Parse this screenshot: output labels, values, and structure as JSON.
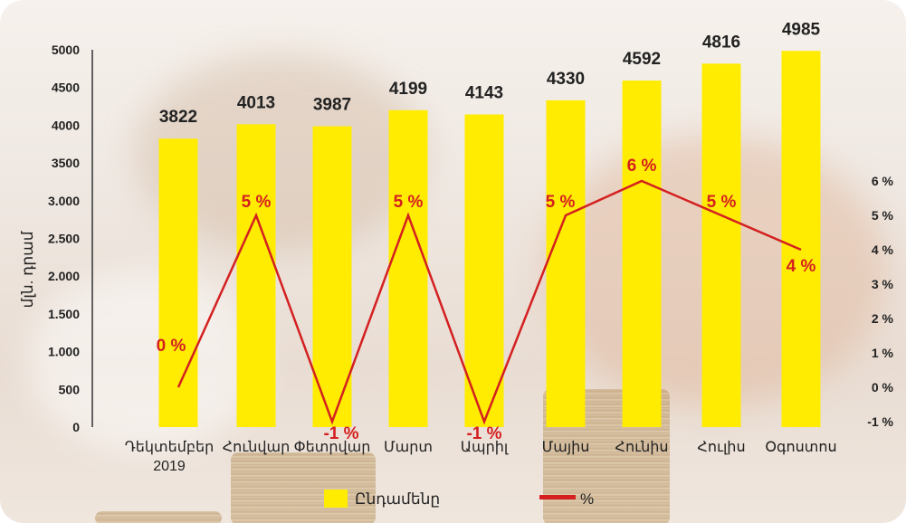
{
  "chart_data": {
    "type": "bar",
    "categories": [
      "Դեկտեմբեր 2019",
      "Հունվար",
      "Փետրվար",
      "Մարտ",
      "Ապրիլ",
      "Մայիս",
      "Հունիս",
      "Հուլիս",
      "Օգոստոս"
    ],
    "series": [
      {
        "name": "Ընդամենը",
        "type": "bar",
        "axis": "left",
        "color": "#ffec00",
        "values": [
          3822,
          4013,
          3987,
          4199,
          4143,
          4330,
          4592,
          4816,
          4985
        ],
        "labels": [
          "3822",
          "4013",
          "3987",
          "4199",
          "4143",
          "4330",
          "4592",
          "4816",
          "4985"
        ]
      },
      {
        "name": "%",
        "type": "line",
        "axis": "right",
        "color": "#d42020",
        "values": [
          0,
          5,
          -1,
          5,
          -1,
          5,
          6,
          5,
          4
        ],
        "labels": [
          "0 %",
          "5 %",
          "-1 %",
          "5 %",
          "-1 %",
          "5 %",
          "6 %",
          "5 %",
          "4 %"
        ]
      }
    ],
    "ylabel": "մլն. դրամ",
    "ylim": [
      0,
      5000
    ],
    "y2lim": [
      -1,
      6
    ],
    "y_ticks": [
      {
        "value": 0,
        "label": "0"
      },
      {
        "value": 500,
        "label": "500"
      },
      {
        "value": 1000,
        "label": "1.000"
      },
      {
        "value": 1500,
        "label": "1.500"
      },
      {
        "value": 2000,
        "label": "2.000"
      },
      {
        "value": 2500,
        "label": "2.500"
      },
      {
        "value": 3000,
        "label": "3.000"
      },
      {
        "value": 3500,
        "label": "3500"
      },
      {
        "value": 4000,
        "label": "4000"
      },
      {
        "value": 4500,
        "label": "4500"
      },
      {
        "value": 5000,
        "label": "5000"
      }
    ],
    "y2_ticks": [
      {
        "value": -1,
        "label": "-1 %"
      },
      {
        "value": 0,
        "label": "0 %"
      },
      {
        "value": 1,
        "label": "1 %"
      },
      {
        "value": 2,
        "label": "2 %"
      },
      {
        "value": 3,
        "label": "3 %"
      },
      {
        "value": 4,
        "label": "4 %"
      },
      {
        "value": 5,
        "label": "5 %"
      },
      {
        "value": 6,
        "label": "6 %"
      }
    ],
    "grid": false,
    "legend": "bottom-center"
  }
}
